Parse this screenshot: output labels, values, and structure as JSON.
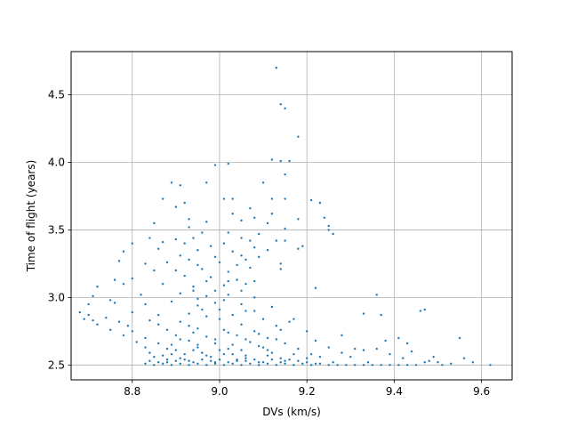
{
  "chart_data": {
    "type": "scatter",
    "title": "",
    "xlabel": "DVs (km/s)",
    "ylabel": "Time of flight (years)",
    "xlim": [
      8.66,
      9.67
    ],
    "ylim": [
      2.39,
      4.82
    ],
    "xticks": [
      8.8,
      9.0,
      9.2,
      9.4,
      9.6
    ],
    "xtick_labels": [
      "8.8",
      "9.0",
      "9.2",
      "9.4",
      "9.6"
    ],
    "yticks": [
      2.5,
      3.0,
      3.5,
      4.0,
      4.5
    ],
    "ytick_labels": [
      "2.5",
      "3.0",
      "3.5",
      "4.0",
      "4.5"
    ],
    "grid": true,
    "legend": "none",
    "marker_color": "#1f77b4",
    "points": [
      [
        9.13,
        4.7
      ],
      [
        9.14,
        4.43
      ],
      [
        9.15,
        4.4
      ],
      [
        9.18,
        4.19
      ],
      [
        9.12,
        4.02
      ],
      [
        9.14,
        4.01
      ],
      [
        9.16,
        4.01
      ],
      [
        8.99,
        3.98
      ],
      [
        9.02,
        3.99
      ],
      [
        9.15,
        3.91
      ],
      [
        8.89,
        3.85
      ],
      [
        8.97,
        3.85
      ],
      [
        9.1,
        3.85
      ],
      [
        8.91,
        3.83
      ],
      [
        8.87,
        3.73
      ],
      [
        9.01,
        3.73
      ],
      [
        9.03,
        3.73
      ],
      [
        9.12,
        3.73
      ],
      [
        9.15,
        3.73
      ],
      [
        9.21,
        3.72
      ],
      [
        9.23,
        3.7
      ],
      [
        8.9,
        3.67
      ],
      [
        8.92,
        3.7
      ],
      [
        9.07,
        3.66
      ],
      [
        9.03,
        3.62
      ],
      [
        9.08,
        3.59
      ],
      [
        9.18,
        3.58
      ],
      [
        9.24,
        3.59
      ],
      [
        8.97,
        3.56
      ],
      [
        8.85,
        3.55
      ],
      [
        9.05,
        3.57
      ],
      [
        9.11,
        3.55
      ],
      [
        9.25,
        3.53
      ],
      [
        8.93,
        3.52
      ],
      [
        9.15,
        3.51
      ],
      [
        8.96,
        3.48
      ],
      [
        9.02,
        3.48
      ],
      [
        9.09,
        3.47
      ],
      [
        9.25,
        3.5
      ],
      [
        9.26,
        3.47
      ],
      [
        8.84,
        3.44
      ],
      [
        8.9,
        3.43
      ],
      [
        8.94,
        3.44
      ],
      [
        9.05,
        3.44
      ],
      [
        9.13,
        3.42
      ],
      [
        9.15,
        3.42
      ],
      [
        8.8,
        3.4
      ],
      [
        8.87,
        3.41
      ],
      [
        8.92,
        3.4
      ],
      [
        9.01,
        3.4
      ],
      [
        9.07,
        3.42
      ],
      [
        9.19,
        3.38
      ],
      [
        8.78,
        3.34
      ],
      [
        8.86,
        3.36
      ],
      [
        8.95,
        3.35
      ],
      [
        9.03,
        3.34
      ],
      [
        9.11,
        3.35
      ],
      [
        9.18,
        3.36
      ],
      [
        8.91,
        3.31
      ],
      [
        8.99,
        3.3
      ],
      [
        9.05,
        3.31
      ],
      [
        9.09,
        3.3
      ],
      [
        8.77,
        3.27
      ],
      [
        8.83,
        3.25
      ],
      [
        8.88,
        3.26
      ],
      [
        8.93,
        3.28
      ],
      [
        9.0,
        3.26
      ],
      [
        9.04,
        3.24
      ],
      [
        9.14,
        3.25
      ],
      [
        8.85,
        3.2
      ],
      [
        8.9,
        3.2
      ],
      [
        8.96,
        3.21
      ],
      [
        9.02,
        3.19
      ],
      [
        9.07,
        3.22
      ],
      [
        9.14,
        3.21
      ],
      [
        8.76,
        3.13
      ],
      [
        8.8,
        3.14
      ],
      [
        8.92,
        3.16
      ],
      [
        8.98,
        3.15
      ],
      [
        9.04,
        3.13
      ],
      [
        9.08,
        3.12
      ],
      [
        8.72,
        3.08
      ],
      [
        8.78,
        3.1
      ],
      [
        8.87,
        3.1
      ],
      [
        8.94,
        3.08
      ],
      [
        9.01,
        3.09
      ],
      [
        9.06,
        3.1
      ],
      [
        9.22,
        3.07
      ],
      [
        8.71,
        3.01
      ],
      [
        8.75,
        2.98
      ],
      [
        8.82,
        3.02
      ],
      [
        8.91,
        3.03
      ],
      [
        8.97,
        3.01
      ],
      [
        9.02,
        3.02
      ],
      [
        9.08,
        3.0
      ],
      [
        9.36,
        3.02
      ],
      [
        8.7,
        2.95
      ],
      [
        8.76,
        2.96
      ],
      [
        8.83,
        2.95
      ],
      [
        8.89,
        2.97
      ],
      [
        8.95,
        2.94
      ],
      [
        8.99,
        2.96
      ],
      [
        9.05,
        2.95
      ],
      [
        9.12,
        2.93
      ],
      [
        8.68,
        2.89
      ],
      [
        8.7,
        2.87
      ],
      [
        8.74,
        2.85
      ],
      [
        8.8,
        2.89
      ],
      [
        8.86,
        2.87
      ],
      [
        8.93,
        2.88
      ],
      [
        8.97,
        2.86
      ],
      [
        9.03,
        2.87
      ],
      [
        9.08,
        2.9
      ],
      [
        9.33,
        2.88
      ],
      [
        9.37,
        2.87
      ],
      [
        9.46,
        2.9
      ],
      [
        9.47,
        2.91
      ],
      [
        8.69,
        2.84
      ],
      [
        8.71,
        2.83
      ],
      [
        8.77,
        2.82
      ],
      [
        8.84,
        2.83
      ],
      [
        8.91,
        2.82
      ],
      [
        9.0,
        2.84
      ],
      [
        9.1,
        2.84
      ],
      [
        9.17,
        2.84
      ],
      [
        8.72,
        2.8
      ],
      [
        8.79,
        2.79
      ],
      [
        8.86,
        2.8
      ],
      [
        8.93,
        2.79
      ],
      [
        9.05,
        2.8
      ],
      [
        9.13,
        2.79
      ],
      [
        9.16,
        2.82
      ],
      [
        8.75,
        2.76
      ],
      [
        8.8,
        2.75
      ],
      [
        8.88,
        2.76
      ],
      [
        8.95,
        2.77
      ],
      [
        9.01,
        2.76
      ],
      [
        9.08,
        2.75
      ],
      [
        9.14,
        2.76
      ],
      [
        9.2,
        2.75
      ],
      [
        8.78,
        2.72
      ],
      [
        8.83,
        2.7
      ],
      [
        8.9,
        2.72
      ],
      [
        8.97,
        2.71
      ],
      [
        9.04,
        2.72
      ],
      [
        9.11,
        2.7
      ],
      [
        9.28,
        2.72
      ],
      [
        9.41,
        2.7
      ],
      [
        8.81,
        2.67
      ],
      [
        8.86,
        2.66
      ],
      [
        8.93,
        2.68
      ],
      [
        8.99,
        2.66
      ],
      [
        9.07,
        2.67
      ],
      [
        9.15,
        2.66
      ],
      [
        9.22,
        2.68
      ],
      [
        9.38,
        2.68
      ],
      [
        9.43,
        2.66
      ],
      [
        8.83,
        2.63
      ],
      [
        8.88,
        2.62
      ],
      [
        8.95,
        2.63
      ],
      [
        9.02,
        2.62
      ],
      [
        9.1,
        2.63
      ],
      [
        9.18,
        2.62
      ],
      [
        9.25,
        2.63
      ],
      [
        9.31,
        2.62
      ],
      [
        9.33,
        2.61
      ],
      [
        9.36,
        2.62
      ],
      [
        9.44,
        2.6
      ],
      [
        8.84,
        2.59
      ],
      [
        8.89,
        2.58
      ],
      [
        8.96,
        2.59
      ],
      [
        9.03,
        2.58
      ],
      [
        9.12,
        2.59
      ],
      [
        9.21,
        2.58
      ],
      [
        9.28,
        2.59
      ],
      [
        9.39,
        2.58
      ],
      [
        9.49,
        2.56
      ],
      [
        9.56,
        2.55
      ],
      [
        8.85,
        2.56
      ],
      [
        8.91,
        2.55
      ],
      [
        8.98,
        2.56
      ],
      [
        9.06,
        2.55
      ],
      [
        9.14,
        2.55
      ],
      [
        9.23,
        2.56
      ],
      [
        9.3,
        2.56
      ],
      [
        9.42,
        2.55
      ],
      [
        9.48,
        2.53
      ],
      [
        9.5,
        2.52
      ],
      [
        8.84,
        2.53
      ],
      [
        8.88,
        2.52
      ],
      [
        8.93,
        2.53
      ],
      [
        8.99,
        2.52
      ],
      [
        9.04,
        2.53
      ],
      [
        9.09,
        2.52
      ],
      [
        9.15,
        2.53
      ],
      [
        9.2,
        2.52
      ],
      [
        9.26,
        2.52
      ],
      [
        9.34,
        2.52
      ],
      [
        9.47,
        2.52
      ],
      [
        9.53,
        2.51
      ],
      [
        9.58,
        2.52
      ],
      [
        9.55,
        2.7
      ],
      [
        9.62,
        2.5
      ],
      [
        8.83,
        2.51
      ],
      [
        8.85,
        2.5
      ],
      [
        8.87,
        2.51
      ],
      [
        8.89,
        2.5
      ],
      [
        8.91,
        2.51
      ],
      [
        8.93,
        2.5
      ],
      [
        8.95,
        2.51
      ],
      [
        8.97,
        2.5
      ],
      [
        8.99,
        2.51
      ],
      [
        9.01,
        2.5
      ],
      [
        9.03,
        2.51
      ],
      [
        9.05,
        2.5
      ],
      [
        9.07,
        2.51
      ],
      [
        9.09,
        2.5
      ],
      [
        9.11,
        2.51
      ],
      [
        9.13,
        2.5
      ],
      [
        9.15,
        2.51
      ],
      [
        9.17,
        2.5
      ],
      [
        9.19,
        2.51
      ],
      [
        9.21,
        2.5
      ],
      [
        9.23,
        2.51
      ],
      [
        9.25,
        2.5
      ],
      [
        9.27,
        2.5
      ],
      [
        9.29,
        2.5
      ],
      [
        9.31,
        2.5
      ],
      [
        9.33,
        2.5
      ],
      [
        9.35,
        2.5
      ],
      [
        9.37,
        2.5
      ],
      [
        9.39,
        2.5
      ],
      [
        9.41,
        2.5
      ],
      [
        9.43,
        2.5
      ],
      [
        9.45,
        2.5
      ],
      [
        9.51,
        2.5
      ],
      [
        8.86,
        2.52
      ],
      [
        8.9,
        2.53
      ],
      [
        8.94,
        2.52
      ],
      [
        8.98,
        2.53
      ],
      [
        9.02,
        2.52
      ],
      [
        9.06,
        2.53
      ],
      [
        9.1,
        2.52
      ],
      [
        9.14,
        2.52
      ],
      [
        9.18,
        2.53
      ],
      [
        9.22,
        2.51
      ],
      [
        8.88,
        2.54
      ],
      [
        8.92,
        2.54
      ],
      [
        8.96,
        2.54
      ],
      [
        9.0,
        2.54
      ],
      [
        9.04,
        2.54
      ],
      [
        9.08,
        2.54
      ],
      [
        9.12,
        2.54
      ],
      [
        9.16,
        2.54
      ],
      [
        9.2,
        2.55
      ],
      [
        8.87,
        2.57
      ],
      [
        8.92,
        2.58
      ],
      [
        8.97,
        2.57
      ],
      [
        9.01,
        2.58
      ],
      [
        9.06,
        2.57
      ],
      [
        9.11,
        2.57
      ],
      [
        9.17,
        2.58
      ],
      [
        8.9,
        2.61
      ],
      [
        8.94,
        2.61
      ],
      [
        9.0,
        2.61
      ],
      [
        9.05,
        2.61
      ],
      [
        9.11,
        2.61
      ],
      [
        8.89,
        2.65
      ],
      [
        8.95,
        2.65
      ],
      [
        9.03,
        2.65
      ],
      [
        9.09,
        2.64
      ],
      [
        8.91,
        2.69
      ],
      [
        8.99,
        2.69
      ],
      [
        9.06,
        2.69
      ],
      [
        9.13,
        2.69
      ],
      [
        8.94,
        2.74
      ],
      [
        9.02,
        2.74
      ],
      [
        9.09,
        2.73
      ],
      [
        8.96,
        2.91
      ],
      [
        9.0,
        2.91
      ],
      [
        9.06,
        2.9
      ],
      [
        8.95,
        2.99
      ],
      [
        9.01,
        2.98
      ],
      [
        8.94,
        3.05
      ],
      [
        8.99,
        3.05
      ],
      [
        9.05,
        3.05
      ],
      [
        8.97,
        3.12
      ],
      [
        9.02,
        3.12
      ],
      [
        8.95,
        3.24
      ],
      [
        9.06,
        3.28
      ],
      [
        8.98,
        3.38
      ],
      [
        9.08,
        3.37
      ],
      [
        8.93,
        3.58
      ],
      [
        9.12,
        3.62
      ]
    ]
  }
}
